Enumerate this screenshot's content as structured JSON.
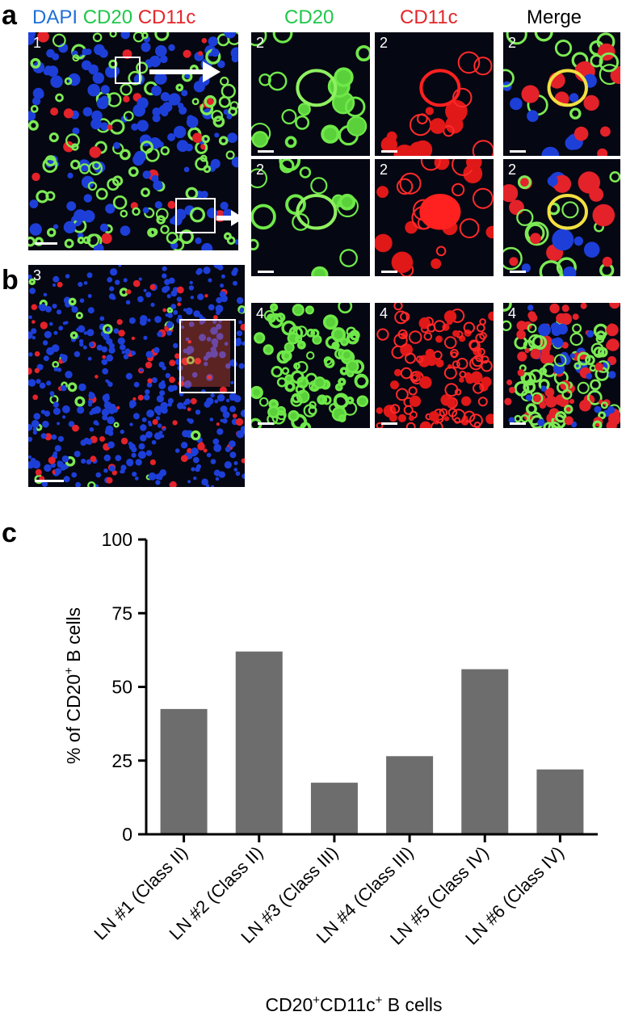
{
  "panels": {
    "a": "a",
    "b": "b",
    "c": "c"
  },
  "header": {
    "dapi": "DAPI",
    "cd20": "CD20",
    "cd11c": "CD11c",
    "col_cd20": "CD20",
    "col_cd11c": "CD11c",
    "col_merge": "Merge",
    "colors": {
      "dapi": "#1f6fd6",
      "cd20": "#1ec84a",
      "cd11c": "#e3262a"
    }
  },
  "micrographs": {
    "overview_a": "1",
    "overview_b": "3",
    "row1": [
      "2",
      "2",
      "2"
    ],
    "row2": [
      "2",
      "2",
      "2"
    ],
    "row3": [
      "4",
      "4",
      "4"
    ]
  },
  "chart_data": {
    "type": "bar",
    "categories": [
      "LN #1 (Class II)",
      "LN #2 (Class II)",
      "LN #3 (Class III)",
      "LN #4 (Class III)",
      "LN #5 (Class IV)",
      "LN #6 (Class IV)"
    ],
    "values": [
      42.5,
      62,
      17.5,
      26.5,
      56,
      22
    ],
    "ylabel_prefix": "% of CD20",
    "ylabel_sup": "+",
    "ylabel_suffix": " B cells",
    "xlabel_part1": "CD20",
    "xlabel_sup1": "+",
    "xlabel_part2": "CD11c",
    "xlabel_sup2": "+",
    "xlabel_part3": " B cells",
    "ylim": [
      0,
      100
    ],
    "yticks": [
      0,
      25,
      50,
      75,
      100
    ],
    "bar_color": "#6d6d6d"
  }
}
